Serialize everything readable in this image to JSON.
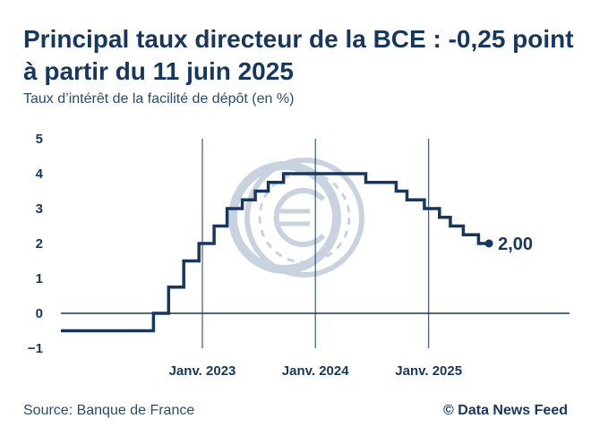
{
  "header": {
    "title": "Principal taux directeur de la BCE : -0,25 point à partir du 11 juin 2025",
    "subtitle": "Taux d’intérêt de la facilité de dépôt (en %)"
  },
  "footer": {
    "source": "Source: Banque de France",
    "credit": "© Data News Feed"
  },
  "colors": {
    "line": "#17375e",
    "axis": "#17375e",
    "watermark": "#c9d3e0"
  },
  "icons": {
    "watermark": "euro-coin-icon"
  },
  "chart_data": {
    "type": "line",
    "step": true,
    "title": "Principal taux directeur de la BCE : -0,25 point à partir du 11 juin 2025",
    "subtitle": "Taux d’intérêt de la facilité de dépôt (en %)",
    "xlabel": "",
    "ylabel": "",
    "ylim": [
      -1,
      5
    ],
    "xlim": [
      "2021-10-01",
      "2026-04-01"
    ],
    "y_ticks": [
      -1,
      0,
      1,
      2,
      3,
      4,
      5
    ],
    "y_tick_labels": [
      "−1",
      "0",
      "1",
      "2",
      "3",
      "4",
      "5"
    ],
    "x_ticks": [
      "2023-01-01",
      "2024-01-01",
      "2025-01-01"
    ],
    "x_tick_labels": [
      "Janv. 2023",
      "Janv. 2024",
      "Janv. 2025"
    ],
    "grid": "vertical lines at January of each year",
    "end_label": "2,00",
    "series": [
      {
        "x": [
          "2021-10-01",
          "2022-07-27",
          "2022-09-14",
          "2022-11-02",
          "2022-12-21",
          "2023-02-08",
          "2023-03-22",
          "2023-05-10",
          "2023-06-21",
          "2023-08-02",
          "2023-09-20",
          "2024-06-12",
          "2024-09-18",
          "2024-10-23",
          "2024-12-18",
          "2025-02-05",
          "2025-03-12",
          "2025-04-23",
          "2025-06-11",
          "2025-07-15"
        ],
        "values": [
          -0.5,
          0.0,
          0.75,
          1.5,
          2.0,
          2.5,
          3.0,
          3.25,
          3.5,
          3.75,
          4.0,
          3.75,
          3.5,
          3.25,
          3.0,
          2.75,
          2.5,
          2.25,
          2.0,
          2.0
        ]
      }
    ]
  }
}
